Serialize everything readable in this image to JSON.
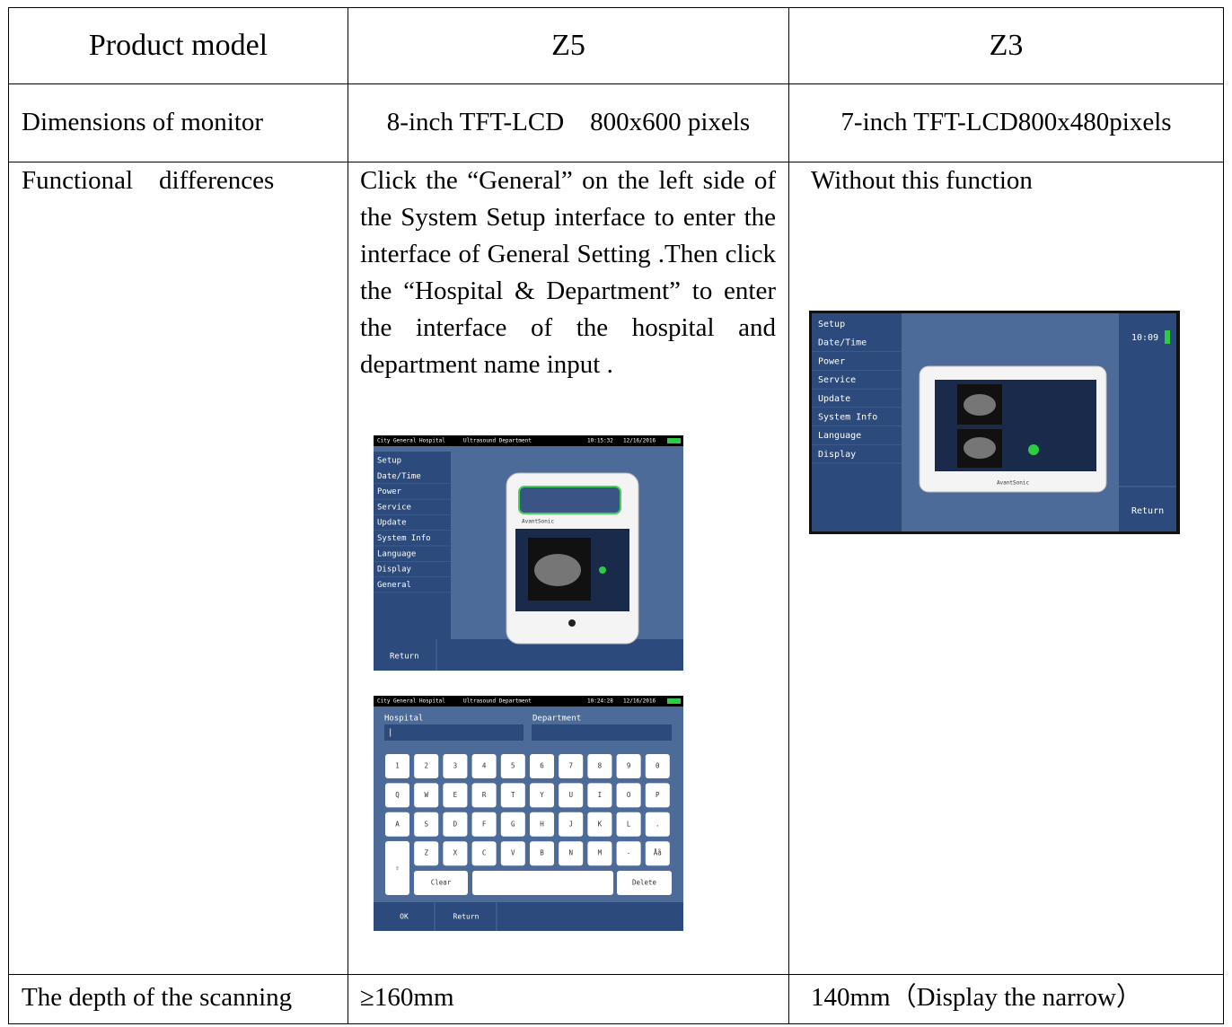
{
  "table": {
    "header": [
      "Product model",
      "Z5",
      "Z3"
    ],
    "rows": [
      [
        "Dimensions of monitor",
        "8-inch TFT-LCD    800x600 pixels",
        "7-inch TFT-LCD800x480pixels"
      ],
      [
        "Functional    differences",
        "Click the “General” on the left side of the System Setup interface to enter the interface of General Setting .Then click the “Hospital & Department” to enter the interface of the hospital and department name input .",
        "Without this function"
      ],
      [
        "The depth of the scanning",
        "≥160mm",
        "140mm（Display the narrow）"
      ]
    ]
  },
  "screens": {
    "z5_setup": {
      "hospital": "City General Hospital",
      "department": "Ultrasound Department",
      "time": "10:15:32",
      "date": "12/16/2016",
      "menu": [
        "Setup",
        "Date/Time",
        "Power",
        "Service",
        "Update",
        "System Info",
        "Language",
        "Display",
        "General"
      ],
      "return": "Return",
      "brand": "AvantSonic"
    },
    "z5_keyboard": {
      "hospital": "City General Hospital",
      "department": "Ultrasound Department",
      "time": "10:24:28",
      "date": "12/16/2016",
      "hospital_label": "Hospital",
      "department_label": "Department",
      "cursor": "|",
      "keys": [
        [
          "1",
          "2",
          "3",
          "4",
          "5",
          "6",
          "7",
          "8",
          "9",
          "0"
        ],
        [
          "Q",
          "W",
          "E",
          "R",
          "T",
          "Y",
          "U",
          "I",
          "O",
          "P"
        ],
        [
          "A",
          "S",
          "D",
          "F",
          "G",
          "H",
          "J",
          "K",
          "L",
          "."
        ],
        [
          "Z",
          "X",
          "C",
          "V",
          "B",
          "N",
          "M",
          "-",
          "Åå"
        ]
      ],
      "shift": "⇧",
      "clear": "Clear",
      "delete": "Delete",
      "buttons": [
        "OK",
        "Return"
      ]
    },
    "z3_setup": {
      "menu": [
        "Setup",
        "Date/Time",
        "Power",
        "Service",
        "Update",
        "System Info",
        "Language",
        "Display"
      ],
      "time": "10:09",
      "return": "Return",
      "brand": "AvantSonic"
    }
  }
}
